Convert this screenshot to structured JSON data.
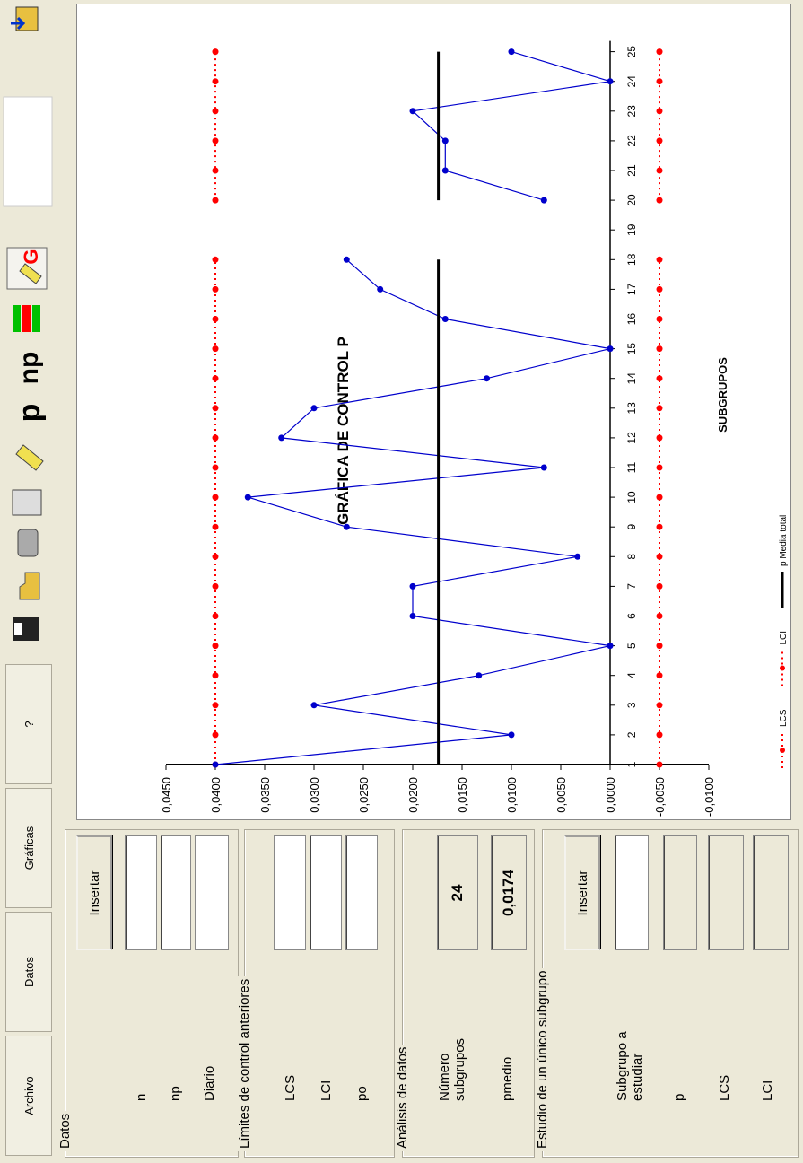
{
  "menu": [
    "Archivo",
    "Datos",
    "Gráficas",
    "?"
  ],
  "toolbar": [
    "p",
    "np",
    "G"
  ],
  "panels": {
    "datos": {
      "title": "Datos",
      "button": "Insertar",
      "fields": [
        "n",
        "np",
        "Diario"
      ]
    },
    "limites": {
      "title": "Límites de control anteriores",
      "fields": [
        "LCS",
        "LCI",
        "po"
      ]
    },
    "analisis": {
      "title": "Análisis de datos",
      "fields": [
        {
          "label": "Número subgrupos",
          "value": "24"
        },
        {
          "label": "pmedio",
          "value": "0,0174"
        }
      ]
    },
    "estudio": {
      "title": "Estudio de un único subgrupo",
      "button": "Insertar",
      "fields": [
        "Subgrupo a estudiar",
        "p",
        "LCS",
        "LCI"
      ]
    }
  },
  "chart_data": {
    "type": "line",
    "title": "GRÁFICA DE CONTROL P",
    "x_label": "SUBGRUPOS",
    "categories": [
      "1",
      "2",
      "3",
      "4",
      "5",
      "6",
      "7",
      "8",
      "9",
      "10",
      "11",
      "12",
      "13",
      "14",
      "15",
      "16",
      "17",
      "18",
      "19",
      "20",
      "21",
      "22",
      "23",
      "24",
      "25"
    ],
    "series": [
      {
        "name": "LCS",
        "color": "#ff0000",
        "style": "dotted",
        "values": [
          0.04,
          0.04,
          0.04,
          0.04,
          0.04,
          0.04,
          0.04,
          0.04,
          0.04,
          0.04,
          0.04,
          0.04,
          0.04,
          0.04,
          0.04,
          0.04,
          0.04,
          0.04,
          null,
          0.04,
          0.04,
          0.04,
          0.04,
          0.04,
          0.04
        ]
      },
      {
        "name": "LCI",
        "color": "#ff0000",
        "style": "dotted",
        "values": [
          -0.005,
          -0.005,
          -0.005,
          -0.005,
          -0.005,
          -0.005,
          -0.005,
          -0.005,
          -0.005,
          -0.005,
          -0.005,
          -0.005,
          -0.005,
          -0.005,
          -0.005,
          -0.005,
          -0.005,
          -0.005,
          null,
          -0.005,
          -0.005,
          -0.005,
          -0.005,
          -0.005,
          -0.005
        ]
      },
      {
        "color": "#0000cc",
        "style": "marker",
        "values": [
          0.04,
          0.01,
          0.03,
          0.0133,
          0,
          0.02,
          0.02,
          0.0033,
          0.0267,
          0.0367,
          0.0067,
          0.0333,
          0.03,
          0.0125,
          0,
          0.0167,
          0.0233,
          0.0267,
          null,
          0.0067,
          0.0167,
          0.0167,
          0.02,
          0,
          0.01
        ]
      },
      {
        "name": "p Media total",
        "color": "#000000",
        "style": "thick",
        "values": [
          0.0174,
          0.0174,
          0.0174,
          0.0174,
          0.0174,
          0.0174,
          0.0174,
          0.0174,
          0.0174,
          0.0174,
          0.0174,
          0.0174,
          0.0174,
          0.0174,
          0.0174,
          0.0174,
          0.0174,
          0.0174,
          null,
          0.0174,
          0.0174,
          0.0174,
          0.0174,
          0.0174,
          0.0174
        ]
      }
    ],
    "ylim": [
      -0.01,
      0.045
    ],
    "yticks": [
      {
        "value": 0.045,
        "label": "0,0450"
      },
      {
        "value": 0.04,
        "label": "0,0400"
      },
      {
        "value": 0.035,
        "label": "0,0350"
      },
      {
        "value": 0.03,
        "label": "0,0300"
      },
      {
        "value": 0.025,
        "label": "0,0250"
      },
      {
        "value": 0.02,
        "label": "0,0200"
      },
      {
        "value": 0.015,
        "label": "0,0150"
      },
      {
        "value": 0.01,
        "label": "0,0100"
      },
      {
        "value": 0.005,
        "label": "0,0050"
      },
      {
        "value": 0,
        "label": "0,0000"
      },
      {
        "value": -0.005,
        "label": "-0,0050"
      },
      {
        "value": -0.01,
        "label": "-0,0100"
      }
    ]
  }
}
